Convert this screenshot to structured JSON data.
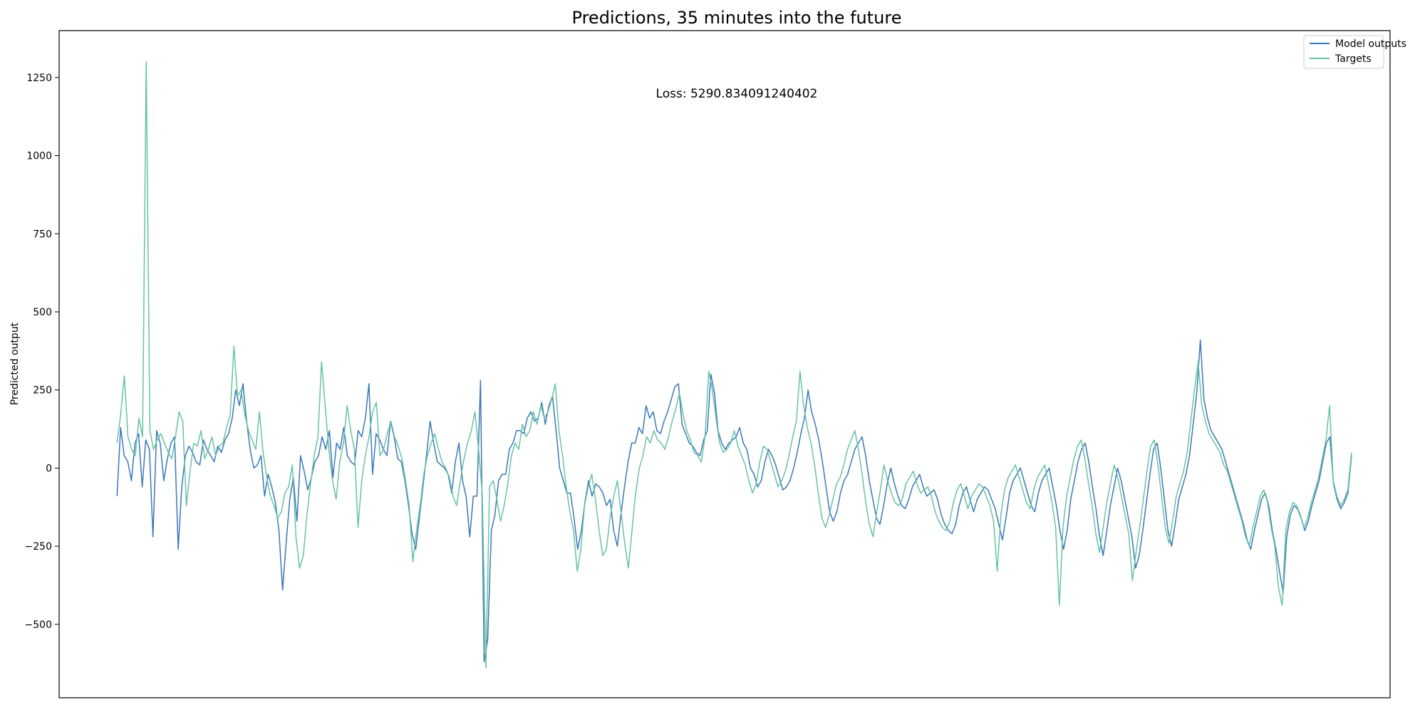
{
  "chart_data": {
    "type": "line",
    "title": "Predictions, 35 minutes into the future",
    "xlabel": "",
    "ylabel": "Predicted output",
    "annotation": "Loss: 5290.834091240402",
    "ylim": [
      -735,
      1400
    ],
    "xlim": [
      -60,
      1320
    ],
    "yticks": [
      -500,
      -250,
      0,
      250,
      500,
      750,
      1000,
      1250
    ],
    "ytick_labels": [
      "−500",
      "−250",
      "0",
      "250",
      "500",
      "750",
      "1000",
      "1250"
    ],
    "grid": false,
    "legend_position": "top-right",
    "series": [
      {
        "name": "Model outputs",
        "color": "#3a78b8",
        "values": [
          -90,
          130,
          40,
          20,
          -40,
          80,
          110,
          -60,
          90,
          60,
          -220,
          120,
          80,
          -40,
          30,
          80,
          100,
          -260,
          -60,
          40,
          70,
          50,
          20,
          10,
          90,
          60,
          40,
          20,
          70,
          50,
          90,
          110,
          160,
          250,
          200,
          270,
          150,
          60,
          0,
          10,
          40,
          -90,
          -20,
          -60,
          -110,
          -200,
          -390,
          -240,
          -100,
          -30,
          -170,
          40,
          -10,
          -70,
          -30,
          20,
          40,
          100,
          60,
          120,
          -30,
          80,
          60,
          130,
          40,
          20,
          10,
          120,
          100,
          160,
          270,
          -20,
          110,
          90,
          60,
          40,
          150,
          100,
          30,
          20,
          -40,
          -120,
          -210,
          -260,
          -160,
          -60,
          40,
          150,
          80,
          20,
          10,
          0,
          -20,
          -80,
          20,
          80,
          -40,
          -90,
          -220,
          -90,
          -90,
          280,
          -620,
          -550,
          -200,
          -150,
          -40,
          -20,
          -20,
          60,
          80,
          120,
          120,
          110,
          160,
          180,
          150,
          160,
          210,
          140,
          200,
          230,
          120,
          0,
          -40,
          -80,
          -80,
          -160,
          -260,
          -200,
          -110,
          -40,
          -90,
          -50,
          -60,
          -80,
          -120,
          -100,
          -200,
          -250,
          -150,
          -60,
          20,
          80,
          80,
          130,
          110,
          200,
          160,
          180,
          120,
          110,
          150,
          180,
          220,
          260,
          270,
          140,
          110,
          80,
          70,
          50,
          40,
          90,
          120,
          300,
          240,
          120,
          80,
          60,
          80,
          90,
          100,
          130,
          80,
          60,
          0,
          -20,
          -60,
          -40,
          20,
          60,
          40,
          10,
          -30,
          -70,
          -60,
          -40,
          0,
          50,
          110,
          160,
          250,
          180,
          140,
          90,
          20,
          -60,
          -140,
          -170,
          -140,
          -80,
          -40,
          -20,
          20,
          60,
          80,
          100,
          40,
          -40,
          -100,
          -160,
          -180,
          -120,
          -50,
          0,
          -50,
          -90,
          -120,
          -130,
          -100,
          -60,
          -40,
          -20,
          -60,
          -90,
          -80,
          -70,
          -100,
          -150,
          -180,
          -200,
          -210,
          -180,
          -120,
          -80,
          -60,
          -100,
          -140,
          -100,
          -80,
          -60,
          -70,
          -100,
          -130,
          -180,
          -230,
          -160,
          -80,
          -40,
          -20,
          0,
          -40,
          -80,
          -120,
          -140,
          -80,
          -40,
          -20,
          0,
          -60,
          -120,
          -200,
          -260,
          -200,
          -100,
          -40,
          20,
          60,
          80,
          20,
          -60,
          -130,
          -220,
          -280,
          -200,
          -120,
          -60,
          0,
          -40,
          -100,
          -160,
          -220,
          -320,
          -280,
          -200,
          -110,
          -20,
          60,
          80,
          0,
          -100,
          -200,
          -250,
          -180,
          -100,
          -60,
          -20,
          40,
          140,
          240,
          410,
          220,
          160,
          120,
          100,
          80,
          60,
          20,
          -20,
          -60,
          -100,
          -140,
          -180,
          -230,
          -260,
          -200,
          -150,
          -100,
          -80,
          -120,
          -200,
          -260,
          -330,
          -400,
          -220,
          -150,
          -120,
          -130,
          -160,
          -200,
          -170,
          -120,
          -80,
          -40,
          20,
          80,
          100,
          -50,
          -100,
          -130,
          -110,
          -80,
          40
        ]
      },
      {
        "name": "Targets",
        "color": "#66c2a5",
        "values": [
          80,
          170,
          295,
          100,
          60,
          40,
          160,
          100,
          1300,
          120,
          60,
          90,
          110,
          80,
          50,
          30,
          100,
          180,
          150,
          -120,
          -10,
          80,
          70,
          120,
          30,
          60,
          100,
          40,
          70,
          80,
          130,
          170,
          390,
          230,
          250,
          170,
          120,
          90,
          60,
          180,
          50,
          -30,
          -90,
          -120,
          -160,
          -140,
          -80,
          -60,
          10,
          -220,
          -320,
          -280,
          -150,
          -50,
          40,
          100,
          340,
          200,
          60,
          -40,
          -100,
          20,
          80,
          200,
          120,
          60,
          -190,
          -40,
          40,
          100,
          180,
          210,
          40,
          60,
          110,
          150,
          100,
          70,
          30,
          -40,
          -120,
          -300,
          -200,
          -120,
          -20,
          40,
          80,
          110,
          60,
          20,
          0,
          -30,
          -90,
          -120,
          -40,
          30,
          80,
          120,
          180,
          60,
          -80,
          -640,
          -60,
          -40,
          -100,
          -170,
          -120,
          -50,
          40,
          80,
          60,
          140,
          100,
          120,
          180,
          140,
          200,
          160,
          180,
          220,
          270,
          120,
          40,
          -60,
          -140,
          -200,
          -330,
          -260,
          -120,
          -60,
          -20,
          -100,
          -200,
          -280,
          -260,
          -160,
          -90,
          -40,
          -140,
          -240,
          -320,
          -200,
          -80,
          0,
          40,
          100,
          80,
          120,
          90,
          80,
          60,
          100,
          150,
          190,
          240,
          170,
          120,
          90,
          50,
          40,
          20,
          100,
          310,
          250,
          160,
          80,
          50,
          60,
          80,
          120,
          70,
          40,
          10,
          -40,
          -80,
          -50,
          20,
          70,
          60,
          20,
          -20,
          -60,
          -40,
          -10,
          40,
          100,
          150,
          310,
          200,
          130,
          80,
          10,
          -80,
          -160,
          -190,
          -150,
          -100,
          -50,
          -30,
          10,
          60,
          90,
          120,
          60,
          -20,
          -110,
          -180,
          -220,
          -140,
          -70,
          10,
          -40,
          -80,
          -110,
          -120,
          -100,
          -50,
          -30,
          -10,
          -50,
          -80,
          -70,
          -60,
          -90,
          -140,
          -170,
          -190,
          -200,
          -170,
          -110,
          -70,
          -50,
          -90,
          -130,
          -90,
          -70,
          -50,
          -60,
          -90,
          -120,
          -170,
          -330,
          -150,
          -70,
          -30,
          -10,
          10,
          -30,
          -70,
          -110,
          -130,
          -70,
          -30,
          -10,
          10,
          -50,
          -110,
          -190,
          -440,
          -190,
          -90,
          -30,
          30,
          70,
          90,
          30,
          -50,
          -120,
          -210,
          -270,
          -190,
          -110,
          -50,
          10,
          -30,
          -90,
          -150,
          -210,
          -360,
          -270,
          -190,
          -100,
          -10,
          70,
          90,
          10,
          -90,
          -190,
          -240,
          -170,
          -90,
          -50,
          -10,
          50,
          150,
          250,
          340,
          200,
          150,
          110,
          90,
          70,
          50,
          10,
          -10,
          -50,
          -90,
          -130,
          -170,
          -220,
          -250,
          -190,
          -140,
          -90,
          -70,
          -110,
          -190,
          -250,
          -380,
          -440,
          -200,
          -140,
          -110,
          -120,
          -150,
          -190,
          -160,
          -110,
          -70,
          -30,
          30,
          90,
          200,
          -40,
          -90,
          -120,
          -100,
          -70,
          50
        ]
      }
    ]
  }
}
